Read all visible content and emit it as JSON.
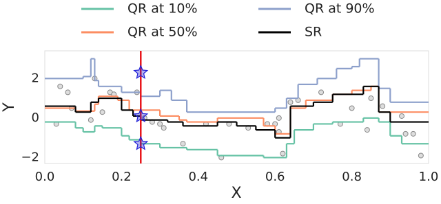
{
  "chart_data": {
    "type": "line",
    "step": "post",
    "xlabel": "X",
    "ylabel": "Y",
    "xlim": [
      0,
      1
    ],
    "ylim": [
      -2.3,
      3.4
    ],
    "xticks": [
      {
        "value": 0,
        "label": "0.0"
      },
      0.2,
      0.4,
      0.6,
      0.8,
      {
        "value": 1,
        "label": "1.0"
      }
    ],
    "yticks": [
      {
        "value": -2,
        "label": "−2"
      },
      0,
      2
    ],
    "grid": false,
    "legend": {
      "position": "upper center",
      "columns": 2
    },
    "series": [
      {
        "name": "QR at 10%",
        "color": "#66c2a5",
        "x": [
          0,
          0.08,
          0.1,
          0.13,
          0.15,
          0.2,
          0.22,
          0.25,
          0.3,
          0.37,
          0.45,
          0.57,
          0.63,
          0.65,
          0.7,
          0.75,
          0.83,
          0.87,
          0.9,
          0.93
        ],
        "values": [
          -0.2,
          -0.5,
          -0.7,
          -0.4,
          -0.5,
          -0.9,
          -1.1,
          -1.3,
          -1.5,
          -1.6,
          -1.9,
          -2.0,
          -1.3,
          -0.6,
          -0.3,
          -0.2,
          0,
          -0.2,
          -0.9,
          -1.3
        ]
      },
      {
        "name": "QR at 50%",
        "color": "#fc8d62",
        "x": [
          0,
          0.08,
          0.13,
          0.14,
          0.19,
          0.22,
          0.3,
          0.35,
          0.37,
          0.45,
          0.57,
          0.6,
          0.64,
          0.68,
          0.75,
          0.8,
          0.85,
          0.87
        ],
        "values": [
          0.5,
          0.35,
          0.7,
          1.1,
          0.9,
          0.4,
          0.1,
          -0.1,
          -0.2,
          0,
          -0.4,
          -0.8,
          0.5,
          0.9,
          1.2,
          1.4,
          1.6,
          0.3
        ]
      },
      {
        "name": "QR at 90%",
        "color": "#8da0cb",
        "x": [
          0,
          0.1,
          0.12,
          0.13,
          0.14,
          0.2,
          0.25,
          0.3,
          0.33,
          0.37,
          0.6,
          0.63,
          0.66,
          0.71,
          0.76,
          0.8,
          0.82,
          0.87,
          0.9
        ],
        "values": [
          2.0,
          2.1,
          3.0,
          1.9,
          1.6,
          1.3,
          1.1,
          1.4,
          0.9,
          0.3,
          0.5,
          1.0,
          1.7,
          2.0,
          2.5,
          2.6,
          3.0,
          1.5,
          0.8
        ]
      },
      {
        "name": "SR",
        "color": "#000000",
        "x": [
          0,
          0.08,
          0.12,
          0.14,
          0.2,
          0.23,
          0.25,
          0.32,
          0.36,
          0.45,
          0.5,
          0.55,
          0.6,
          0.64,
          0.7,
          0.75,
          0.83,
          0.87,
          0.9
        ],
        "values": [
          0.6,
          0.3,
          0.8,
          1.0,
          0.4,
          0.1,
          -0.1,
          -0.2,
          -0.4,
          -0.2,
          -0.4,
          -0.6,
          -1.0,
          0.6,
          0.8,
          1.2,
          1.6,
          0.3,
          -0.2
        ]
      }
    ],
    "points": {
      "color": "#888888",
      "x": [
        0.03,
        0.04,
        0.06,
        0.07,
        0.12,
        0.13,
        0.15,
        0.17,
        0.18,
        0.24,
        0.26,
        0.28,
        0.3,
        0.31,
        0.36,
        0.42,
        0.46,
        0.48,
        0.53,
        0.58,
        0.6,
        0.61,
        0.61,
        0.62,
        0.64,
        0.66,
        0.72,
        0.77,
        0.8,
        0.84,
        0.85,
        0.88,
        0.93,
        0.94,
        0.96,
        0.98
      ],
      "y": [
        -0.3,
        1.6,
        1.3,
        0.5,
        -0.1,
        2.0,
        0.3,
        1.3,
        1.2,
        1.3,
        0.0,
        -0.2,
        -0.3,
        -0.5,
        -1.3,
        -0.3,
        -2.0,
        -0.3,
        -0.5,
        -0.3,
        -0.3,
        0.0,
        -0.7,
        -1.8,
        0.8,
        0.9,
        1.3,
        -0.3,
        0.5,
        -0.6,
        1.0,
        0.6,
        0.1,
        -0.8,
        -0.8,
        -1.9
      ]
    },
    "vline": {
      "x": 0.25,
      "color": "#e8161b"
    },
    "markers": {
      "color": "#1f1fd6",
      "x": [
        0.25,
        0.25,
        0.25
      ],
      "y": [
        2.3,
        0.1,
        -1.3
      ]
    }
  }
}
